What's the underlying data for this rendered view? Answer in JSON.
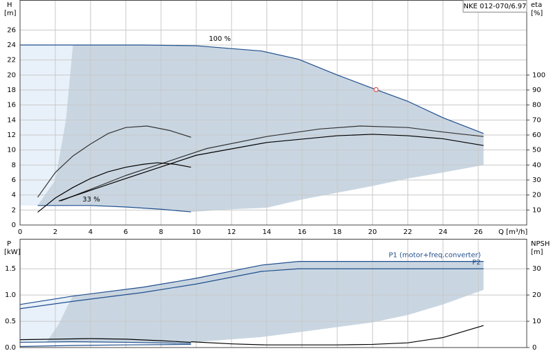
{
  "chart_data": [
    {
      "type": "line",
      "title": "NKE 012-070/6.97",
      "ylabel": "H",
      "yunit": "[m]",
      "y2label": "eta",
      "y2unit": "[%]",
      "xlabel": "Q [m³/h]",
      "xlim": [
        0,
        28.75
      ],
      "xticks": [
        0,
        2,
        4,
        6,
        8,
        10,
        12,
        14,
        16,
        18,
        20,
        22,
        24,
        26
      ],
      "ylim": [
        0,
        30
      ],
      "yticks": [
        0,
        2,
        4,
        6,
        8,
        10,
        12,
        14,
        16,
        18,
        20,
        22,
        24,
        26
      ],
      "y2lim": [
        0,
        150
      ],
      "y2ticks": [
        10,
        20,
        30,
        40,
        50,
        60,
        70,
        80,
        90,
        100
      ],
      "grid": true,
      "areas": [
        {
          "color": "#e8f1fa",
          "x": [
            0,
            3,
            2.6,
            2,
            1,
            0
          ],
          "y": [
            24,
            24,
            14,
            6,
            2.6,
            2.6
          ]
        },
        {
          "color": "#c9d6e2",
          "x": [
            3,
            7,
            10,
            13.7,
            15.8,
            18,
            20.2,
            22,
            24,
            26.3,
            26.3,
            24,
            22,
            20,
            18,
            16,
            14,
            12,
            9.8,
            8,
            6,
            4,
            1,
            2,
            2.6
          ],
          "y": [
            24,
            24,
            23.9,
            23.2,
            22.1,
            20,
            18.05,
            16.5,
            14.3,
            12.2,
            8,
            7,
            6.2,
            5.2,
            4.3,
            3.4,
            2.3,
            2.1,
            1.75,
            2.1,
            2.4,
            2.6,
            2.6,
            6,
            14
          ]
        }
      ],
      "annotations": [
        "100 %",
        "33 %"
      ],
      "series": [
        {
          "color": "#1f4e8c",
          "x": [
            0,
            3,
            7,
            10,
            13.7,
            15.8,
            18,
            20.2,
            22,
            24,
            26.3
          ],
          "values": [
            24,
            24,
            24,
            23.9,
            23.2,
            22.1,
            20,
            18.05,
            16.5,
            14.3,
            12.2
          ]
        },
        {
          "color": "#1f4e8c",
          "x": [
            1,
            4,
            6,
            8,
            9.7
          ],
          "values": [
            2.6,
            2.6,
            2.4,
            2.1,
            1.75
          ]
        },
        {
          "color": "#333333",
          "axis": "y2",
          "x": [
            2.3,
            6,
            10.6,
            14,
            17,
            19.3,
            22,
            24,
            26.3
          ],
          "values": [
            16,
            33,
            51,
            59,
            64,
            66,
            65,
            62,
            59
          ]
        },
        {
          "color": "#000000",
          "axis": "y2",
          "x": [
            2.2,
            6,
            10,
            14,
            18,
            20,
            22,
            24,
            26.3
          ],
          "values": [
            16,
            31,
            46.5,
            55,
            59.5,
            60.5,
            59.5,
            57.5,
            53
          ]
        },
        {
          "color": "#333333",
          "axis": "y2",
          "x": [
            1,
            2,
            3,
            4,
            5,
            6,
            7.2,
            8.5,
            9.7
          ],
          "values": [
            18.5,
            35,
            46,
            54,
            61,
            65,
            66,
            63,
            58.5
          ]
        },
        {
          "color": "#000000",
          "axis": "y2",
          "x": [
            1,
            2,
            3,
            4,
            5,
            6,
            7,
            7.8,
            8.8,
            9.7
          ],
          "values": [
            8.5,
            18,
            25,
            31,
            35.5,
            38.5,
            40.5,
            41.5,
            40.5,
            38.5
          ]
        }
      ],
      "duty_point": {
        "x": 20.2,
        "y": 18.05,
        "color": "#e05050"
      }
    },
    {
      "type": "line",
      "ylabel": "P",
      "yunit": "[kW]",
      "y2label": "NPSH",
      "y2unit": "[m]",
      "xlim": [
        0,
        28.75
      ],
      "xticks": [
        0,
        2,
        4,
        6,
        8,
        10,
        12,
        14,
        16,
        18,
        20,
        22,
        24,
        26
      ],
      "ylim": [
        0,
        2.07
      ],
      "yticks": [
        {
          "value": 0,
          "label": "0.0"
        },
        0.5,
        {
          "value": 1,
          "label": "1.0"
        },
        1.5
      ],
      "y2lim": [
        0,
        41.4
      ],
      "y2ticks": [
        0,
        10,
        20,
        30
      ],
      "grid": true,
      "areas": [
        {
          "color": "#e8f1fa",
          "x": [
            0,
            3,
            2.7,
            2.2,
            1.5,
            0
          ],
          "y": [
            0.82,
            0.98,
            0.8,
            0.45,
            0.1,
            0.1
          ]
        },
        {
          "color": "#c9d6e2",
          "x": [
            3,
            7,
            10,
            13.7,
            15.8,
            20,
            26.3,
            26.3,
            24,
            22,
            20,
            16,
            13.7,
            9.8,
            6,
            3,
            1.5,
            2.2,
            2.7
          ],
          "y": [
            0.98,
            1.15,
            1.32,
            1.57,
            1.64,
            1.64,
            1.64,
            1.1,
            0.82,
            0.62,
            0.48,
            0.3,
            0.2,
            0.1,
            0.1,
            0.1,
            0.1,
            0.45,
            0.8
          ]
        }
      ],
      "series": [
        {
          "name": "P1 (motor+freq.converter)",
          "color": "#1f4e8c",
          "x": [
            0,
            3,
            7,
            10,
            13.7,
            15.8,
            20,
            26.3
          ],
          "values": [
            0.82,
            0.98,
            1.15,
            1.32,
            1.57,
            1.64,
            1.64,
            1.64
          ]
        },
        {
          "name": "P2",
          "color": "#1f4e8c",
          "x": [
            0,
            3,
            7,
            10,
            13.7,
            15.8,
            20,
            26.3
          ],
          "values": [
            0.74,
            0.88,
            1.05,
            1.21,
            1.45,
            1.5,
            1.5,
            1.5
          ]
        },
        {
          "color": "#1f4e8c",
          "x": [
            0,
            3,
            6,
            9.7
          ],
          "values": [
            0.1,
            0.11,
            0.1,
            0.08
          ]
        },
        {
          "color": "#1f4e8c",
          "x": [
            0,
            3,
            6,
            9.7
          ],
          "values": [
            0.02,
            0.04,
            0.05,
            0.06
          ]
        },
        {
          "color": "#000000",
          "x": [
            0,
            2,
            4,
            6,
            8,
            9.7
          ],
          "values": [
            0.15,
            0.16,
            0.17,
            0.16,
            0.13,
            0.1
          ]
        },
        {
          "color": "#000000",
          "axis": "y2",
          "x": [
            9.7,
            12,
            14,
            16,
            18,
            20,
            22,
            24,
            26.3
          ],
          "values": [
            2.2,
            1.4,
            1.0,
            1.0,
            1.0,
            1.2,
            1.8,
            3.8,
            8.4
          ]
        }
      ]
    }
  ]
}
